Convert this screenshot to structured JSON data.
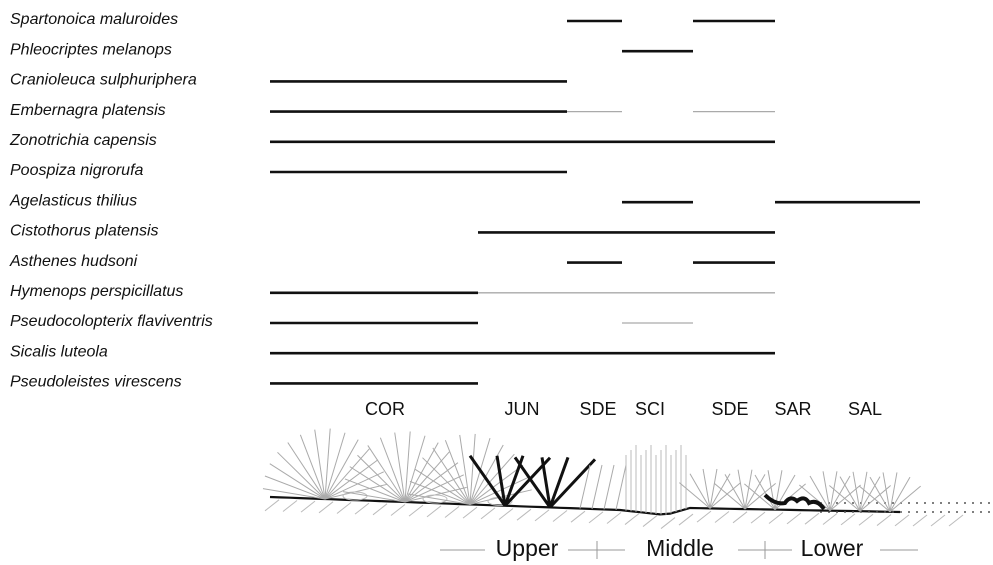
{
  "zones": [
    "COR",
    "JUN",
    "SDE",
    "SCI",
    "SDE",
    "SAR",
    "SAL"
  ],
  "sections": [
    "Upper",
    "Middle",
    "Lower"
  ],
  "species": [
    {
      "name": "Spartonoica maluroides",
      "ranges": [
        {
          "from": 2,
          "to": 2,
          "color": "#111"
        },
        {
          "from": 4,
          "to": 4,
          "color": "#111"
        }
      ]
    },
    {
      "name": "Phleocriptes melanops",
      "ranges": [
        {
          "from": 3,
          "to": 3,
          "color": "#111"
        }
      ]
    },
    {
      "name": "Cranioleuca sulphuriphera",
      "ranges": [
        {
          "from": 0,
          "to": 1,
          "color": "#111"
        }
      ]
    },
    {
      "name": "Embernagra platensis",
      "ranges": [
        {
          "from": 0,
          "to": 1,
          "color": "#111"
        },
        {
          "from": 2,
          "to": 2,
          "color": "#aaa"
        },
        {
          "from": 4,
          "to": 4,
          "color": "#aaa"
        }
      ]
    },
    {
      "name": "Zonotrichia capensis",
      "ranges": [
        {
          "from": 0,
          "to": 4,
          "color": "#111"
        }
      ]
    },
    {
      "name": "Poospiza nigrorufa",
      "ranges": [
        {
          "from": 0,
          "to": 1,
          "color": "#111"
        }
      ]
    },
    {
      "name": "Agelasticus thilius",
      "ranges": [
        {
          "from": 3,
          "to": 3,
          "color": "#111"
        },
        {
          "from": 5,
          "to": 6,
          "color": "#111"
        }
      ]
    },
    {
      "name": "Cistothorus platensis",
      "ranges": [
        {
          "from": 1,
          "to": 4,
          "color": "#111"
        }
      ]
    },
    {
      "name": "Asthenes hudsoni",
      "ranges": [
        {
          "from": 2,
          "to": 2,
          "color": "#111"
        },
        {
          "from": 4,
          "to": 4,
          "color": "#111"
        }
      ]
    },
    {
      "name": "Hymenops perspicillatus",
      "ranges": [
        {
          "from": 0,
          "to": 0,
          "color": "#111"
        },
        {
          "from": 1,
          "to": 4,
          "color": "#aaa"
        }
      ]
    },
    {
      "name": "Pseudocolopterix flaviventris",
      "ranges": [
        {
          "from": 0,
          "to": 0,
          "color": "#111"
        },
        {
          "from": 3,
          "to": 3,
          "color": "#aaa"
        }
      ]
    },
    {
      "name": "Sicalis luteola",
      "ranges": [
        {
          "from": 0,
          "to": 4,
          "color": "#111"
        }
      ]
    },
    {
      "name": "Pseudoleistes virescens",
      "ranges": [
        {
          "from": 0,
          "to": 0,
          "color": "#111"
        }
      ]
    }
  ]
}
